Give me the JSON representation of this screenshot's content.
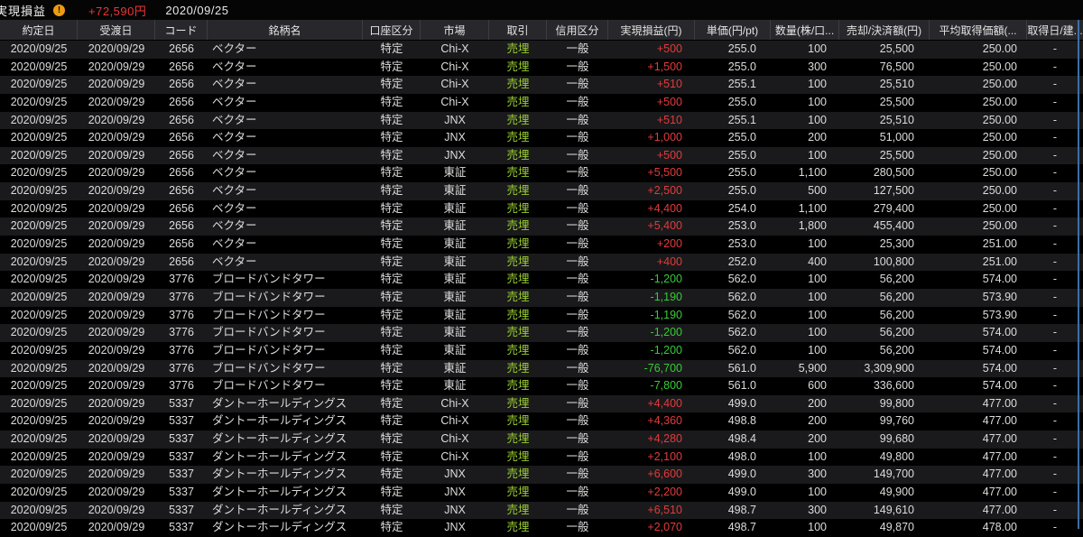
{
  "topbar": {
    "title": "実現損益",
    "warning_icon": "!",
    "total_pl": "+72,590円",
    "date": "2020/09/25"
  },
  "colors": {
    "profit_red": "#e23b3b",
    "loss_green": "#35cc35",
    "trade_green": "#9acd32",
    "header_bg": "#28282c",
    "row_alt_bg": "#1a1a1c",
    "edge_blue": "#3e6fa8",
    "warning_orange": "#ef9b10"
  },
  "table": {
    "columns": [
      "約定日",
      "受渡日",
      "コード",
      "銘柄名",
      "口座区分",
      "市場",
      "取引",
      "信用区分",
      "実現損益(円)",
      "単価(円/pt)",
      "数量(株/口...",
      "売却/決済額(円)",
      "平均取得価額(...",
      "取得日/建..."
    ],
    "rows": [
      [
        "2020/09/25",
        "2020/09/29",
        "2656",
        "ベクター",
        "特定",
        "Chi-X",
        "売埋",
        "一般",
        "+500",
        "255.0",
        "100",
        "25,500",
        "250.00",
        "-"
      ],
      [
        "2020/09/25",
        "2020/09/29",
        "2656",
        "ベクター",
        "特定",
        "Chi-X",
        "売埋",
        "一般",
        "+1,500",
        "255.0",
        "300",
        "76,500",
        "250.00",
        "-"
      ],
      [
        "2020/09/25",
        "2020/09/29",
        "2656",
        "ベクター",
        "特定",
        "Chi-X",
        "売埋",
        "一般",
        "+510",
        "255.1",
        "100",
        "25,510",
        "250.00",
        "-"
      ],
      [
        "2020/09/25",
        "2020/09/29",
        "2656",
        "ベクター",
        "特定",
        "Chi-X",
        "売埋",
        "一般",
        "+500",
        "255.0",
        "100",
        "25,500",
        "250.00",
        "-"
      ],
      [
        "2020/09/25",
        "2020/09/29",
        "2656",
        "ベクター",
        "特定",
        "JNX",
        "売埋",
        "一般",
        "+510",
        "255.1",
        "100",
        "25,510",
        "250.00",
        "-"
      ],
      [
        "2020/09/25",
        "2020/09/29",
        "2656",
        "ベクター",
        "特定",
        "JNX",
        "売埋",
        "一般",
        "+1,000",
        "255.0",
        "200",
        "51,000",
        "250.00",
        "-"
      ],
      [
        "2020/09/25",
        "2020/09/29",
        "2656",
        "ベクター",
        "特定",
        "JNX",
        "売埋",
        "一般",
        "+500",
        "255.0",
        "100",
        "25,500",
        "250.00",
        "-"
      ],
      [
        "2020/09/25",
        "2020/09/29",
        "2656",
        "ベクター",
        "特定",
        "東証",
        "売埋",
        "一般",
        "+5,500",
        "255.0",
        "1,100",
        "280,500",
        "250.00",
        "-"
      ],
      [
        "2020/09/25",
        "2020/09/29",
        "2656",
        "ベクター",
        "特定",
        "東証",
        "売埋",
        "一般",
        "+2,500",
        "255.0",
        "500",
        "127,500",
        "250.00",
        "-"
      ],
      [
        "2020/09/25",
        "2020/09/29",
        "2656",
        "ベクター",
        "特定",
        "東証",
        "売埋",
        "一般",
        "+4,400",
        "254.0",
        "1,100",
        "279,400",
        "250.00",
        "-"
      ],
      [
        "2020/09/25",
        "2020/09/29",
        "2656",
        "ベクター",
        "特定",
        "東証",
        "売埋",
        "一般",
        "+5,400",
        "253.0",
        "1,800",
        "455,400",
        "250.00",
        "-"
      ],
      [
        "2020/09/25",
        "2020/09/29",
        "2656",
        "ベクター",
        "特定",
        "東証",
        "売埋",
        "一般",
        "+200",
        "253.0",
        "100",
        "25,300",
        "251.00",
        "-"
      ],
      [
        "2020/09/25",
        "2020/09/29",
        "2656",
        "ベクター",
        "特定",
        "東証",
        "売埋",
        "一般",
        "+400",
        "252.0",
        "400",
        "100,800",
        "251.00",
        "-"
      ],
      [
        "2020/09/25",
        "2020/09/29",
        "3776",
        "ブロードバンドタワー",
        "特定",
        "東証",
        "売埋",
        "一般",
        "-1,200",
        "562.0",
        "100",
        "56,200",
        "574.00",
        "-"
      ],
      [
        "2020/09/25",
        "2020/09/29",
        "3776",
        "ブロードバンドタワー",
        "特定",
        "東証",
        "売埋",
        "一般",
        "-1,190",
        "562.0",
        "100",
        "56,200",
        "573.90",
        "-"
      ],
      [
        "2020/09/25",
        "2020/09/29",
        "3776",
        "ブロードバンドタワー",
        "特定",
        "東証",
        "売埋",
        "一般",
        "-1,190",
        "562.0",
        "100",
        "56,200",
        "573.90",
        "-"
      ],
      [
        "2020/09/25",
        "2020/09/29",
        "3776",
        "ブロードバンドタワー",
        "特定",
        "東証",
        "売埋",
        "一般",
        "-1,200",
        "562.0",
        "100",
        "56,200",
        "574.00",
        "-"
      ],
      [
        "2020/09/25",
        "2020/09/29",
        "3776",
        "ブロードバンドタワー",
        "特定",
        "東証",
        "売埋",
        "一般",
        "-1,200",
        "562.0",
        "100",
        "56,200",
        "574.00",
        "-"
      ],
      [
        "2020/09/25",
        "2020/09/29",
        "3776",
        "ブロードバンドタワー",
        "特定",
        "東証",
        "売埋",
        "一般",
        "-76,700",
        "561.0",
        "5,900",
        "3,309,900",
        "574.00",
        "-"
      ],
      [
        "2020/09/25",
        "2020/09/29",
        "3776",
        "ブロードバンドタワー",
        "特定",
        "東証",
        "売埋",
        "一般",
        "-7,800",
        "561.0",
        "600",
        "336,600",
        "574.00",
        "-"
      ],
      [
        "2020/09/25",
        "2020/09/29",
        "5337",
        "ダントーホールディングス",
        "特定",
        "Chi-X",
        "売埋",
        "一般",
        "+4,400",
        "499.0",
        "200",
        "99,800",
        "477.00",
        "-"
      ],
      [
        "2020/09/25",
        "2020/09/29",
        "5337",
        "ダントーホールディングス",
        "特定",
        "Chi-X",
        "売埋",
        "一般",
        "+4,360",
        "498.8",
        "200",
        "99,760",
        "477.00",
        "-"
      ],
      [
        "2020/09/25",
        "2020/09/29",
        "5337",
        "ダントーホールディングス",
        "特定",
        "Chi-X",
        "売埋",
        "一般",
        "+4,280",
        "498.4",
        "200",
        "99,680",
        "477.00",
        "-"
      ],
      [
        "2020/09/25",
        "2020/09/29",
        "5337",
        "ダントーホールディングス",
        "特定",
        "Chi-X",
        "売埋",
        "一般",
        "+2,100",
        "498.0",
        "100",
        "49,800",
        "477.00",
        "-"
      ],
      [
        "2020/09/25",
        "2020/09/29",
        "5337",
        "ダントーホールディングス",
        "特定",
        "JNX",
        "売埋",
        "一般",
        "+6,600",
        "499.0",
        "300",
        "149,700",
        "477.00",
        "-"
      ],
      [
        "2020/09/25",
        "2020/09/29",
        "5337",
        "ダントーホールディングス",
        "特定",
        "JNX",
        "売埋",
        "一般",
        "+2,200",
        "499.0",
        "100",
        "49,900",
        "477.00",
        "-"
      ],
      [
        "2020/09/25",
        "2020/09/29",
        "5337",
        "ダントーホールディングス",
        "特定",
        "JNX",
        "売埋",
        "一般",
        "+6,510",
        "498.7",
        "300",
        "149,610",
        "477.00",
        "-"
      ],
      [
        "2020/09/25",
        "2020/09/29",
        "5337",
        "ダントーホールディングス",
        "特定",
        "JNX",
        "売埋",
        "一般",
        "+2,070",
        "498.7",
        "100",
        "49,870",
        "478.00",
        "-"
      ]
    ]
  }
}
